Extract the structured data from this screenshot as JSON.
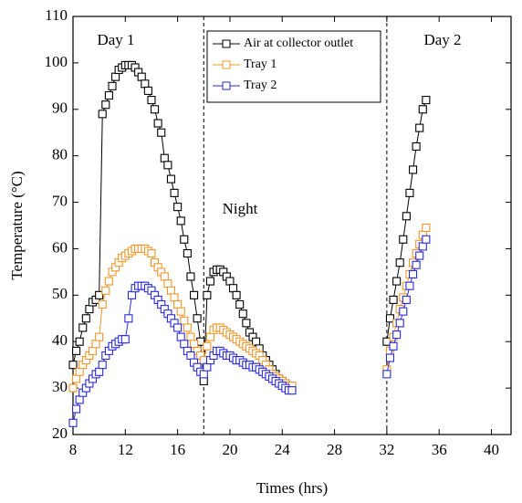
{
  "chart_data": {
    "type": "line",
    "x_label": "Times (hrs)",
    "y_label": "Temperature (°C)",
    "xlim": [
      8,
      41.5
    ],
    "ylim": [
      20,
      110
    ],
    "xticks": [
      8,
      12,
      16,
      20,
      24,
      28,
      32,
      36,
      40
    ],
    "yticks": [
      20,
      30,
      40,
      50,
      60,
      70,
      80,
      90,
      100,
      110
    ],
    "legend": "upper center",
    "marker": "square",
    "vlines": [
      18,
      32
    ],
    "annotations": [
      "Day 1",
      "Night",
      "Day 2"
    ],
    "x": [
      8,
      8.25,
      8.5,
      8.75,
      9,
      9.25,
      9.5,
      9.75,
      10,
      10.25,
      10.5,
      10.75,
      11,
      11.25,
      11.5,
      11.75,
      12,
      12.25,
      12.5,
      12.75,
      13,
      13.25,
      13.5,
      13.75,
      14,
      14.25,
      14.5,
      14.75,
      15,
      15.25,
      15.5,
      15.75,
      16,
      16.25,
      16.5,
      16.75,
      17,
      17.25,
      17.5,
      17.75,
      18,
      18.25,
      18.5,
      18.75,
      19,
      19.25,
      19.5,
      19.75,
      20,
      20.25,
      20.5,
      20.75,
      21,
      21.25,
      21.5,
      21.75,
      22,
      22.25,
      22.5,
      22.75,
      23,
      23.25,
      23.5,
      23.75,
      24,
      24.25,
      24.5,
      24.75,
      32,
      32.25,
      32.5,
      32.75,
      33,
      33.25,
      33.5,
      33.75,
      34,
      34.25,
      34.5,
      34.75,
      35
    ],
    "series": [
      {
        "name": "Air at collector outlet",
        "color": "#000000",
        "values": [
          35,
          38,
          40,
          43,
          45,
          47,
          48.5,
          49,
          50,
          89,
          91,
          93,
          95,
          97,
          98.5,
          99,
          99.5,
          99.5,
          99.5,
          99,
          98,
          97,
          95.5,
          94,
          92,
          90,
          87,
          85,
          79.5,
          78,
          75,
          72,
          69,
          66,
          62,
          59,
          54,
          50,
          45,
          40,
          31.5,
          50,
          53,
          55,
          55.5,
          55.5,
          55,
          54,
          53,
          51.5,
          50,
          48,
          46,
          44,
          42,
          41,
          40,
          38.5,
          37,
          36,
          35,
          34,
          33,
          32,
          31.5,
          31,
          30.5,
          30,
          40,
          45,
          49,
          53,
          57,
          62,
          67,
          72,
          77,
          82,
          86,
          90,
          92
        ]
      },
      {
        "name": "Tray 1",
        "color": "#f0962a",
        "values": [
          30,
          32,
          33.5,
          35,
          36,
          37,
          38,
          39.5,
          41,
          48,
          51,
          53,
          55,
          56,
          57,
          58,
          58.5,
          59,
          59.5,
          60,
          60,
          60,
          60,
          59.5,
          59,
          57,
          56,
          55,
          54,
          52.5,
          51,
          49.5,
          48,
          46.5,
          44.5,
          43,
          41,
          39.5,
          38,
          37,
          36,
          39,
          41,
          42.5,
          43,
          43,
          42.5,
          42,
          41.5,
          41,
          40.5,
          40,
          39.5,
          39,
          38.5,
          38,
          37.5,
          37,
          36,
          35,
          34,
          33,
          32.5,
          32,
          31.5,
          31,
          30.5,
          30.5,
          34,
          38,
          41,
          44,
          47,
          49.5,
          52,
          54.5,
          57,
          59,
          61,
          63,
          64.5
        ]
      },
      {
        "name": "Tray 2",
        "color": "#2a2ae0",
        "values": [
          22.5,
          25.5,
          27.5,
          29,
          30,
          31,
          32,
          33,
          33.5,
          35,
          37,
          38,
          39,
          39.5,
          40,
          40.5,
          40.5,
          45,
          50,
          51.5,
          52,
          52,
          52,
          51.5,
          51,
          50,
          49,
          48,
          47,
          46,
          45,
          44,
          43,
          41,
          39.5,
          38,
          37,
          35.5,
          34.5,
          33.5,
          33,
          34.5,
          36,
          37,
          38,
          38,
          37.5,
          37,
          37,
          36.5,
          36,
          36,
          35.5,
          35,
          35,
          34.5,
          34.5,
          34,
          33.5,
          33,
          32.5,
          32,
          31.5,
          31,
          30.5,
          30,
          29.5,
          29.5,
          33,
          36.5,
          39,
          41.5,
          44,
          46.5,
          49,
          52,
          54.5,
          56.5,
          58.5,
          60.5,
          62
        ]
      }
    ]
  }
}
